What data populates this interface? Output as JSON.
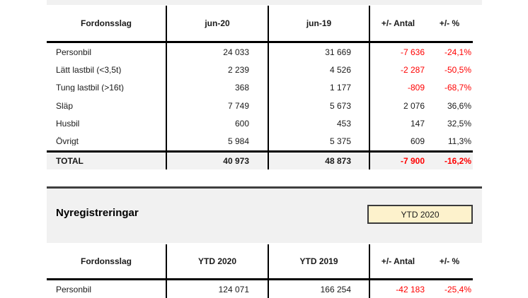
{
  "colors": {
    "negative_value": "#ff0000",
    "band_background": "#f1f1f1",
    "total_row_background": "#f2f2f2",
    "badge_background": "#fdf2cc",
    "rule_dark": "#3f3f3f"
  },
  "monthly": {
    "headers": [
      "Fordonsslag",
      "jun-20",
      "jun-19",
      "+/- Antal",
      "+/- %"
    ],
    "rows": [
      {
        "label": "Personbil",
        "v1": "24 033",
        "v2": "31 669",
        "antal": "-7 636",
        "pct": "-24,1%"
      },
      {
        "label": "Lätt lastbil (<3,5t)",
        "v1": "2 239",
        "v2": "4 526",
        "antal": "-2 287",
        "pct": "-50,5%"
      },
      {
        "label": "Tung lastbil (>16t)",
        "v1": "368",
        "v2": "1 177",
        "antal": "-809",
        "pct": "-68,7%"
      },
      {
        "label": "Släp",
        "v1": "7 749",
        "v2": "5 673",
        "antal": "2 076",
        "pct": "36,6%"
      },
      {
        "label": "Husbil",
        "v1": "600",
        "v2": "453",
        "antal": "147",
        "pct": "32,5%"
      },
      {
        "label": "Övrigt",
        "v1": "5 984",
        "v2": "5 375",
        "antal": "609",
        "pct": "11,3%"
      }
    ],
    "total": {
      "label": "TOTAL",
      "v1": "40 973",
      "v2": "48 873",
      "antal": "-7 900",
      "pct": "-16,2%"
    }
  },
  "ytd_section": {
    "title": "Nyregistreringar",
    "period_badge": "YTD 2020",
    "headers": [
      "Fordonsslag",
      "YTD 2020",
      "YTD 2019",
      "+/- Antal",
      "+/- %"
    ],
    "rows": [
      {
        "label": "Personbil",
        "v1": "124 071",
        "v2": "166 254",
        "antal": "-42 183",
        "pct": "-25,4%"
      }
    ]
  }
}
